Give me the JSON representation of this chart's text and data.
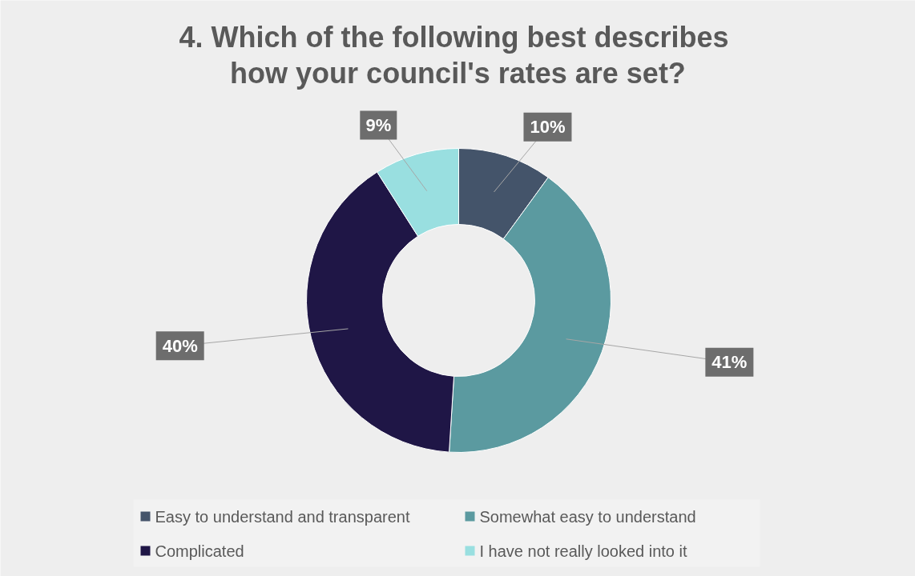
{
  "chart_data": {
    "type": "donut",
    "title": "4.  Which of the following best describes\nhow your council's rates are set?",
    "categories": [
      "Easy to understand and transparent",
      "Somewhat easy to understand",
      "Complicated",
      "I have not really looked into it"
    ],
    "values": [
      10,
      41,
      40,
      9
    ],
    "value_labels": [
      "10%",
      "41%",
      "40%",
      "9%"
    ],
    "colors": [
      "#44546a",
      "#5b9aa0",
      "#1f1646",
      "#99dfe0"
    ],
    "legend": "bottom"
  }
}
